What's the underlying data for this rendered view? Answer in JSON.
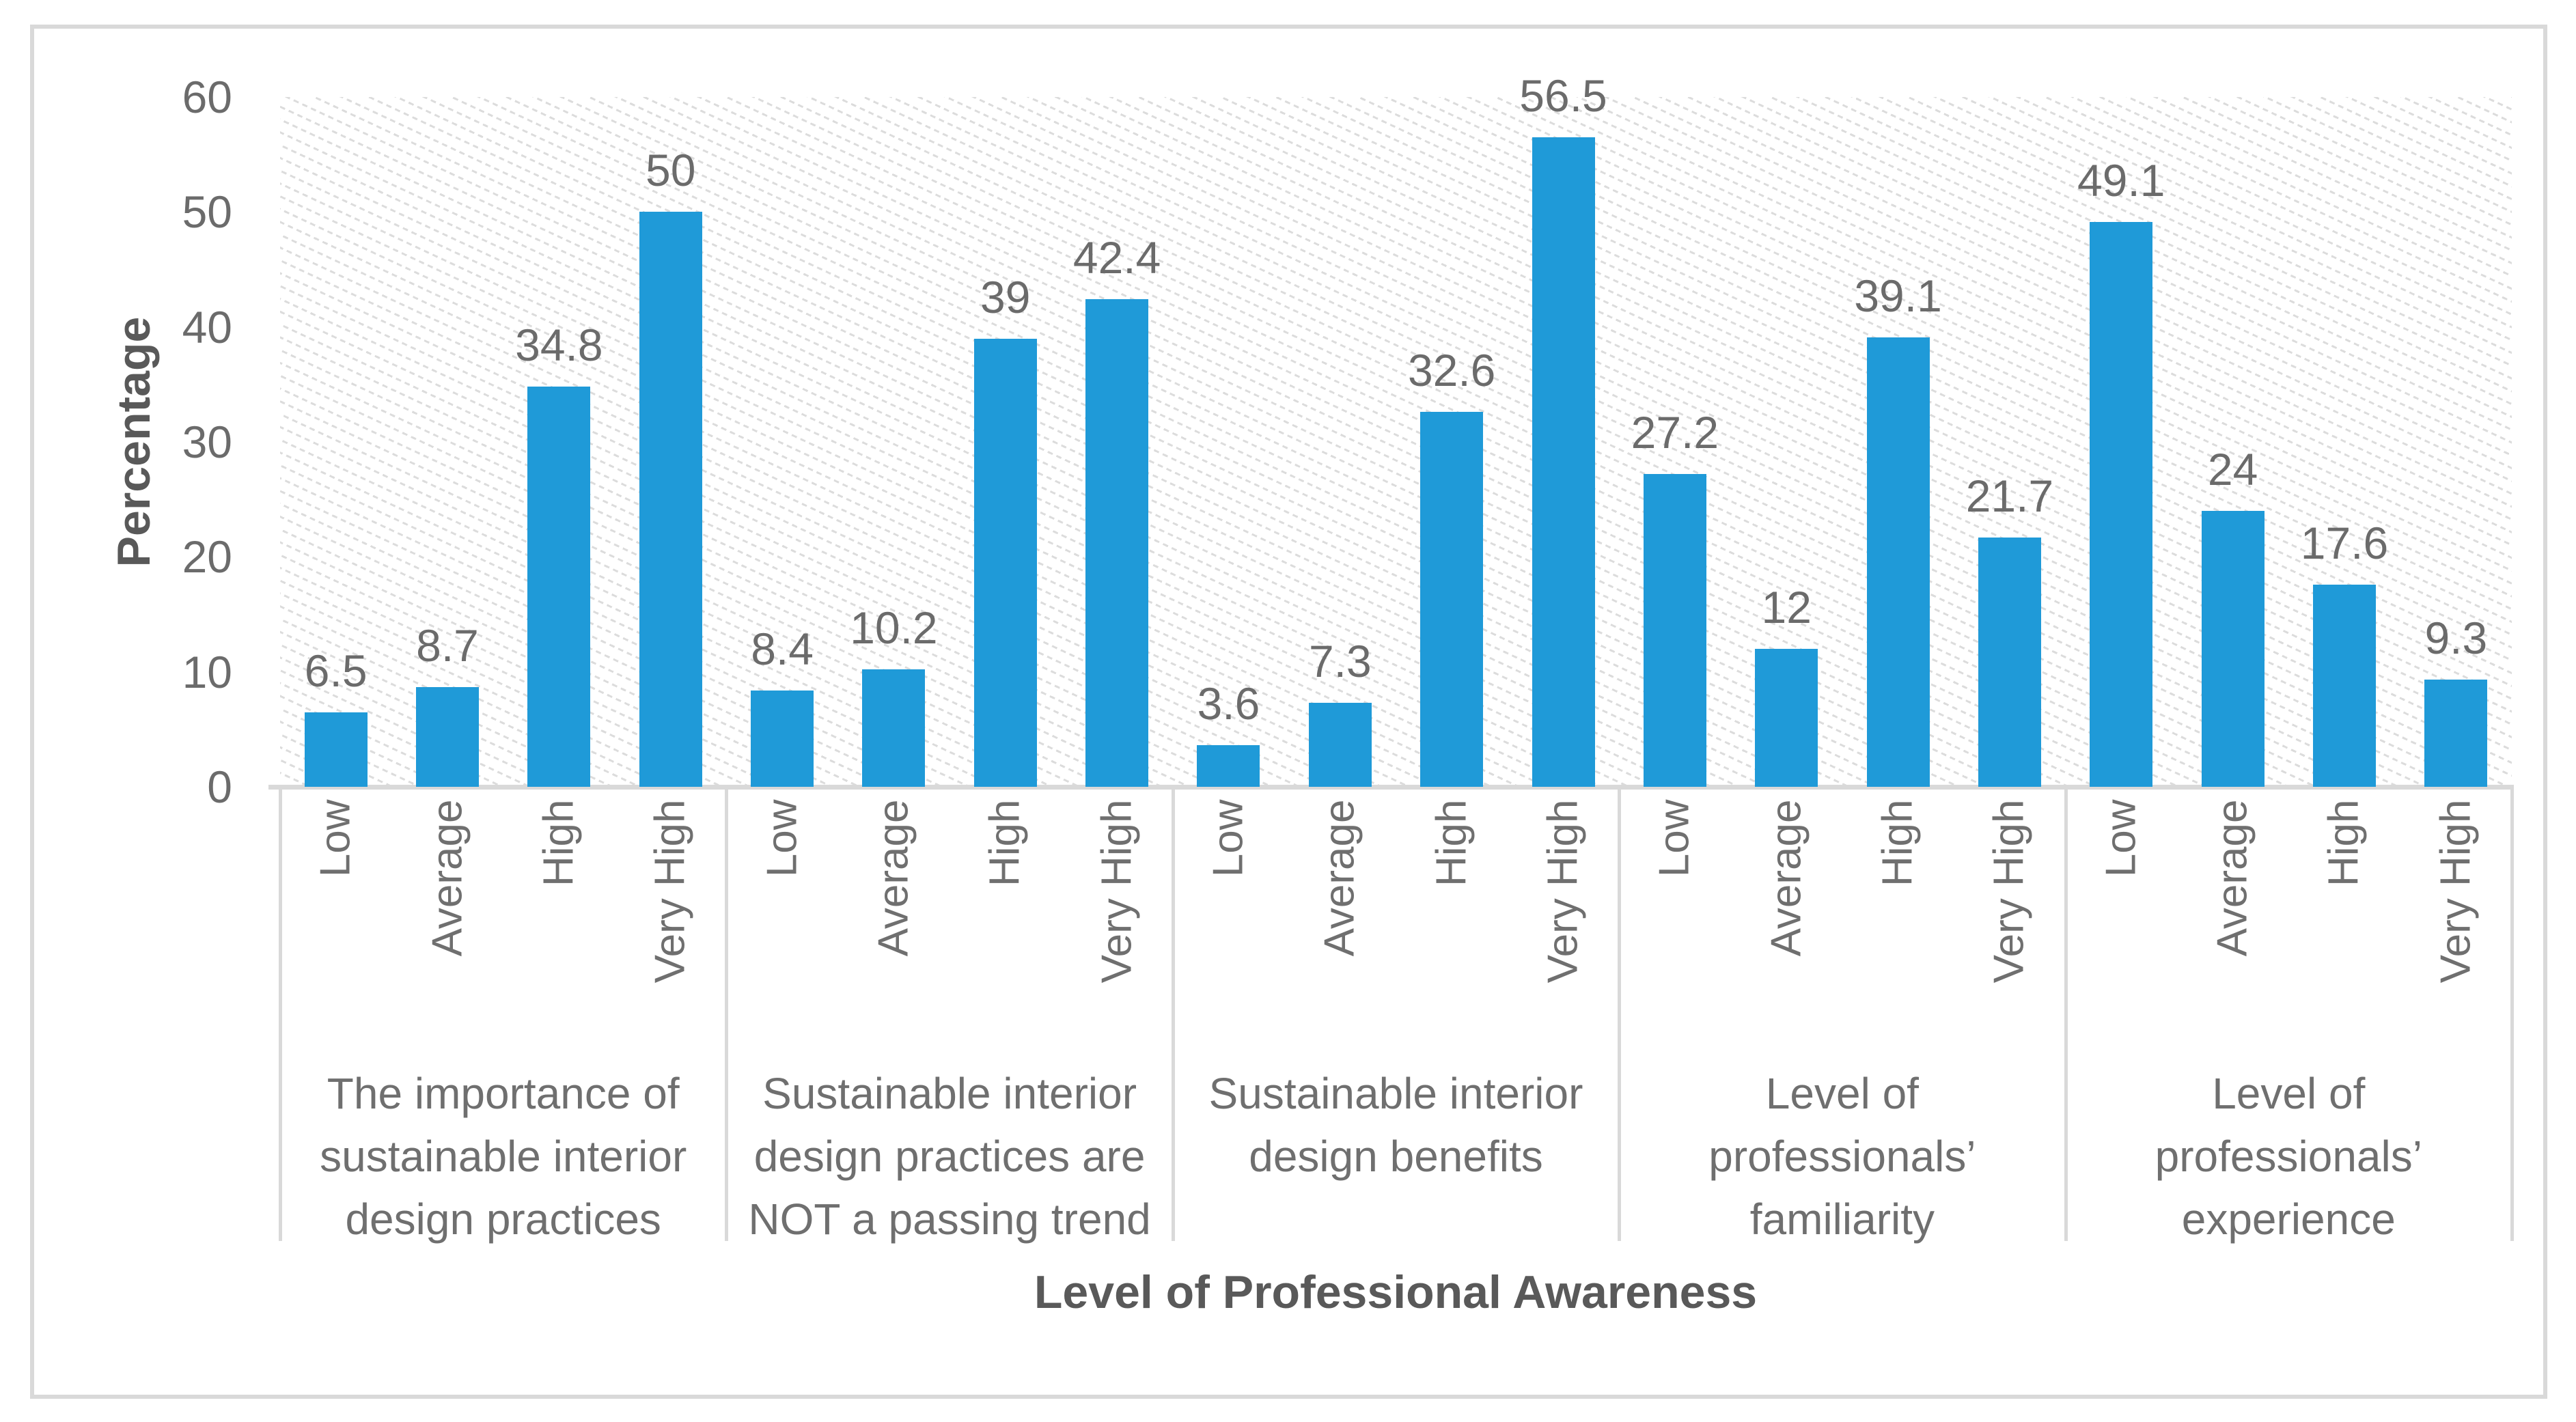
{
  "colors": {
    "bar": "#1F9AD8",
    "axis_lines": "#D9D9D9",
    "data_label_text": "#6B6B6B",
    "axis_title_text": "#595959",
    "hatch": "#DCDCDC"
  },
  "chart_data": {
    "type": "bar",
    "title": "",
    "xlabel": "Level of Professional Awareness",
    "ylabel": "Percentage",
    "ylim": [
      0,
      60
    ],
    "yticks": [
      "0",
      "10",
      "20",
      "30",
      "40",
      "50",
      "60"
    ],
    "grid": "hatched plot background, no gridlines",
    "legend": "none",
    "bar_color": "#1F9AD8",
    "categories_per_group": [
      "Low",
      "Average",
      "High",
      "Very High"
    ],
    "groups": [
      {
        "label": "The importance of sustainable interior design practices",
        "values": [
          6.5,
          8.7,
          34.8,
          50
        ]
      },
      {
        "label": "Sustainable interior design practices are NOT a passing trend",
        "values": [
          8.4,
          10.2,
          39,
          42.4
        ]
      },
      {
        "label": "Sustainable interior design benefits",
        "values": [
          3.6,
          7.3,
          32.6,
          56.5
        ]
      },
      {
        "label": "Level of professionals’ familiarity",
        "values": [
          27.2,
          12,
          39.1,
          21.7
        ]
      },
      {
        "label": "Level of professionals’ experience",
        "values": [
          49.1,
          24,
          17.6,
          9.3
        ]
      }
    ]
  }
}
